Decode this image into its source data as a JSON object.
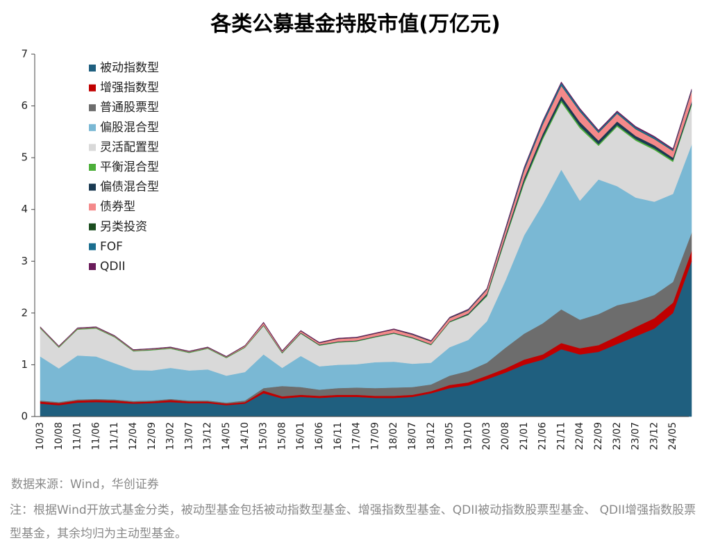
{
  "chart_data": {
    "type": "stacked_area",
    "title": "各类公募基金持股市值(万亿元)",
    "source": "数据来源：Wind，华创证券",
    "note": "注：根据Wind开放式基金分类，被动型基金包括被动指数型基金、增强指数型基金、QDII被动指数股票型基金、 QDII增强指数股票型基金，其余均归为主动型基金。",
    "categories": [
      "10/03",
      "10/08",
      "11/01",
      "11/06",
      "11/11",
      "12/04",
      "12/09",
      "13/02",
      "13/07",
      "13/12",
      "14/05",
      "14/10",
      "15/03",
      "15/08",
      "16/01",
      "16/06",
      "16/11",
      "17/04",
      "17/09",
      "18/02",
      "18/07",
      "18/12",
      "19/05",
      "19/10",
      "20/03",
      "20/08",
      "21/01",
      "21/06",
      "21/11",
      "22/04",
      "22/09",
      "23/02",
      "23/07",
      "23/12",
      "24/05",
      null
    ],
    "ylim": [
      0,
      7
    ],
    "yticks": [
      0,
      1,
      2,
      3,
      4,
      5,
      6,
      7
    ],
    "series": [
      {
        "name": "被动指数型",
        "color": "#1f5f7f",
        "values": [
          0.25,
          0.22,
          0.27,
          0.28,
          0.27,
          0.25,
          0.26,
          0.28,
          0.26,
          0.26,
          0.22,
          0.25,
          0.45,
          0.35,
          0.38,
          0.36,
          0.38,
          0.38,
          0.36,
          0.36,
          0.38,
          0.45,
          0.55,
          0.6,
          0.72,
          0.85,
          1.0,
          1.1,
          1.3,
          1.2,
          1.25,
          1.4,
          1.55,
          1.7,
          2.0,
          3.0
        ]
      },
      {
        "name": "增强指数型",
        "color": "#c00000",
        "values": [
          0.04,
          0.04,
          0.04,
          0.04,
          0.04,
          0.03,
          0.03,
          0.04,
          0.03,
          0.03,
          0.03,
          0.03,
          0.05,
          0.04,
          0.04,
          0.04,
          0.04,
          0.04,
          0.04,
          0.04,
          0.04,
          0.04,
          0.06,
          0.06,
          0.07,
          0.08,
          0.1,
          0.1,
          0.12,
          0.12,
          0.13,
          0.15,
          0.18,
          0.2,
          0.2,
          0.2
        ]
      },
      {
        "name": "普通股票型",
        "color": "#6d6d6d",
        "values": [
          0.02,
          0.02,
          0.02,
          0.02,
          0.02,
          0.02,
          0.02,
          0.02,
          0.02,
          0.02,
          0.02,
          0.03,
          0.05,
          0.2,
          0.15,
          0.12,
          0.13,
          0.14,
          0.15,
          0.16,
          0.15,
          0.13,
          0.18,
          0.22,
          0.25,
          0.4,
          0.5,
          0.6,
          0.65,
          0.55,
          0.6,
          0.6,
          0.5,
          0.45,
          0.4,
          0.35
        ]
      },
      {
        "name": "偏股混合型",
        "color": "#7ab8d4",
        "values": [
          0.85,
          0.65,
          0.85,
          0.82,
          0.7,
          0.6,
          0.58,
          0.6,
          0.58,
          0.6,
          0.52,
          0.55,
          0.65,
          0.35,
          0.6,
          0.45,
          0.45,
          0.45,
          0.5,
          0.5,
          0.45,
          0.42,
          0.55,
          0.6,
          0.8,
          1.3,
          1.9,
          2.3,
          2.7,
          2.3,
          2.6,
          2.3,
          2.0,
          1.8,
          1.7,
          1.7
        ]
      },
      {
        "name": "灵活配置型",
        "color": "#d9d9d9",
        "values": [
          0.54,
          0.4,
          0.5,
          0.54,
          0.5,
          0.36,
          0.39,
          0.37,
          0.34,
          0.4,
          0.34,
          0.47,
          0.55,
          0.28,
          0.43,
          0.4,
          0.43,
          0.44,
          0.48,
          0.54,
          0.49,
          0.34,
          0.48,
          0.48,
          0.48,
          0.8,
          1.0,
          1.25,
          1.3,
          1.4,
          0.65,
          1.15,
          1.1,
          1.0,
          0.62,
          0.75
        ]
      },
      {
        "name": "平衡混合型",
        "color": "#4caf3a",
        "values": [
          0.01,
          0.01,
          0.01,
          0.01,
          0.01,
          0.01,
          0.01,
          0.01,
          0.01,
          0.01,
          0.01,
          0.01,
          0.01,
          0.01,
          0.01,
          0.01,
          0.01,
          0.01,
          0.01,
          0.01,
          0.01,
          0.01,
          0.01,
          0.01,
          0.02,
          0.03,
          0.04,
          0.04,
          0.04,
          0.04,
          0.03,
          0.03,
          0.03,
          0.03,
          0.03,
          0.03
        ]
      },
      {
        "name": "偏债混合型",
        "color": "#1a3a52",
        "values": [
          0.005,
          0.005,
          0.005,
          0.005,
          0.005,
          0.005,
          0.005,
          0.005,
          0.005,
          0.005,
          0.005,
          0.005,
          0.01,
          0.01,
          0.01,
          0.01,
          0.01,
          0.01,
          0.01,
          0.01,
          0.01,
          0.01,
          0.01,
          0.02,
          0.03,
          0.04,
          0.06,
          0.07,
          0.08,
          0.08,
          0.07,
          0.07,
          0.06,
          0.06,
          0.05,
          0.05
        ]
      },
      {
        "name": "债券型",
        "color": "#f4898a",
        "values": [
          0.01,
          0.01,
          0.01,
          0.01,
          0.01,
          0.01,
          0.01,
          0.01,
          0.01,
          0.01,
          0.01,
          0.02,
          0.04,
          0.02,
          0.03,
          0.03,
          0.05,
          0.05,
          0.05,
          0.06,
          0.05,
          0.05,
          0.06,
          0.06,
          0.08,
          0.1,
          0.15,
          0.18,
          0.2,
          0.2,
          0.15,
          0.15,
          0.13,
          0.12,
          0.13,
          0.2
        ]
      },
      {
        "name": "另类投资",
        "color": "#1b4d1f",
        "values": [
          0.005,
          0.005,
          0.005,
          0.005,
          0.005,
          0.005,
          0.005,
          0.005,
          0.005,
          0.005,
          0.005,
          0.005,
          0.005,
          0.005,
          0.005,
          0.005,
          0.005,
          0.005,
          0.005,
          0.005,
          0.005,
          0.005,
          0.005,
          0.005,
          0.005,
          0.005,
          0.005,
          0.005,
          0.005,
          0.005,
          0.005,
          0.005,
          0.005,
          0.005,
          0.005,
          0.005
        ]
      },
      {
        "name": "FOF",
        "color": "#1b6e8f",
        "values": [
          0,
          0,
          0,
          0,
          0,
          0,
          0,
          0,
          0,
          0,
          0,
          0,
          0,
          0,
          0,
          0,
          0,
          0,
          0,
          0,
          0.005,
          0.005,
          0.005,
          0.01,
          0.01,
          0.02,
          0.04,
          0.05,
          0.05,
          0.04,
          0.03,
          0.03,
          0.03,
          0.03,
          0.02,
          0.02
        ]
      },
      {
        "name": "QDII",
        "color": "#6a1b5a",
        "values": [
          0.005,
          0.005,
          0.005,
          0.005,
          0.005,
          0.005,
          0.005,
          0.005,
          0.005,
          0.005,
          0.005,
          0.005,
          0.01,
          0.01,
          0.01,
          0.01,
          0.01,
          0.01,
          0.01,
          0.01,
          0.01,
          0.01,
          0.01,
          0.01,
          0.01,
          0.02,
          0.02,
          0.02,
          0.02,
          0.02,
          0.02,
          0.02,
          0.02,
          0.02,
          0.02,
          0.02
        ]
      }
    ]
  }
}
